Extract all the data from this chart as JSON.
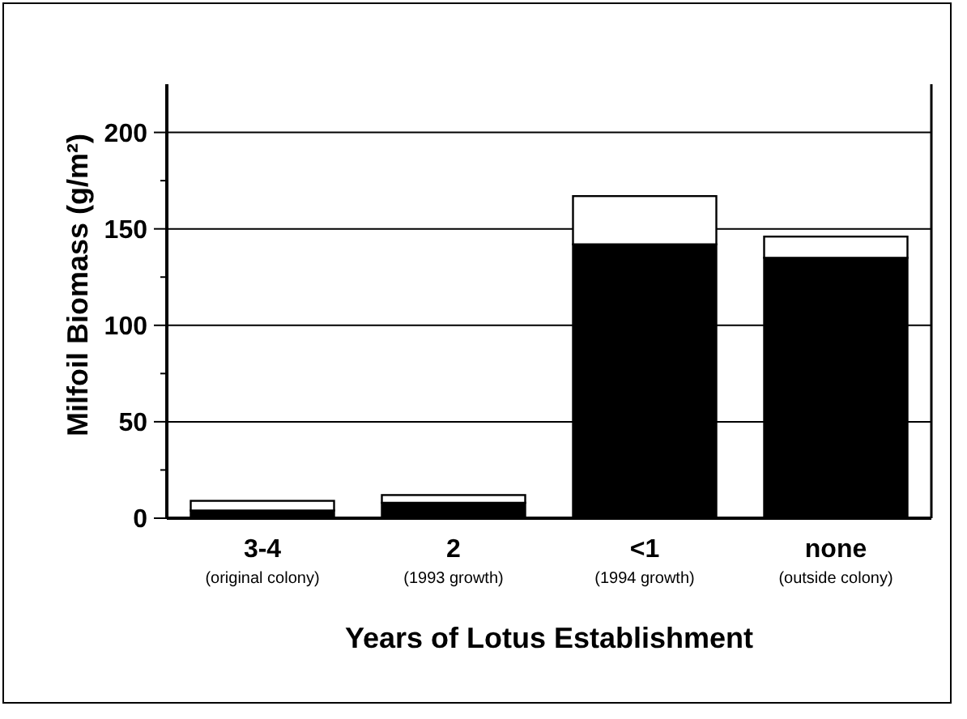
{
  "chart_data": {
    "type": "bar",
    "stacked": true,
    "xlabel": "Years of Lotus Establishment",
    "ylabel": "Milfoil Biomass (g/m²)",
    "categories": [
      "3-4\n(original colony)",
      "2\n(1993 growth)",
      "<1\n(1994 growth)",
      "none\n(outside colony)"
    ],
    "series": [
      {
        "color": "#000000",
        "values": [
          4,
          8,
          142,
          135
        ]
      },
      {
        "color": "#ffffff",
        "values": [
          5,
          4,
          25,
          11
        ]
      }
    ],
    "ylim": [
      0,
      225
    ],
    "yticks": [
      0,
      {
        "value": 25,
        "label": null
      },
      50,
      {
        "value": 75,
        "label": null
      },
      100,
      {
        "value": 125,
        "label": null
      },
      150,
      {
        "value": 175,
        "label": null
      },
      200
    ],
    "grid": "y"
  }
}
